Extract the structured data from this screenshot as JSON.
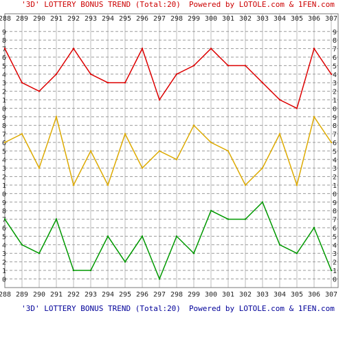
{
  "header": {
    "title_text": "'3D' LOTTERY BONUS TREND (Total:20)",
    "powered_text": "Powered by LOTOLE.com & 1FEN.com"
  },
  "footer": {
    "title_text": "'3D' LOTTERY BONUS TREND (Total:20)",
    "powered_text": "Powered by LOTOLE.com & 1FEN.com"
  },
  "colors": {
    "title_top": "#cc0000",
    "title_bottom": "#000099",
    "grid_dash": "#999999",
    "grid_solid": "#bbbbbb",
    "border": "#777777"
  },
  "chart_data": {
    "type": "line",
    "x": [
      "288",
      "289",
      "290",
      "291",
      "292",
      "293",
      "294",
      "295",
      "296",
      "297",
      "298",
      "299",
      "300",
      "301",
      "302",
      "303",
      "304",
      "305",
      "306",
      "307"
    ],
    "digit_ticks": [
      "0",
      "1",
      "2",
      "3",
      "4",
      "5",
      "6",
      "7",
      "8",
      "9"
    ],
    "series": [
      {
        "color": "#009900",
        "values": [
          7,
          4,
          3,
          7,
          1,
          1,
          5,
          2,
          5,
          0,
          5,
          3,
          8,
          7,
          7,
          9,
          4,
          3,
          6,
          1
        ]
      },
      {
        "color": "#ddaa00",
        "values": [
          6,
          7,
          3,
          9,
          1,
          5,
          1,
          7,
          3,
          5,
          4,
          8,
          6,
          5,
          1,
          3,
          7,
          1,
          9,
          6
        ]
      },
      {
        "color": "#dd0000",
        "values": [
          7,
          3,
          2,
          4,
          7,
          4,
          3,
          3,
          7,
          1,
          4,
          5,
          7,
          5,
          5,
          3,
          1,
          0,
          7,
          4
        ]
      }
    ],
    "ylim": [
      0,
      9
    ],
    "grid": true
  }
}
